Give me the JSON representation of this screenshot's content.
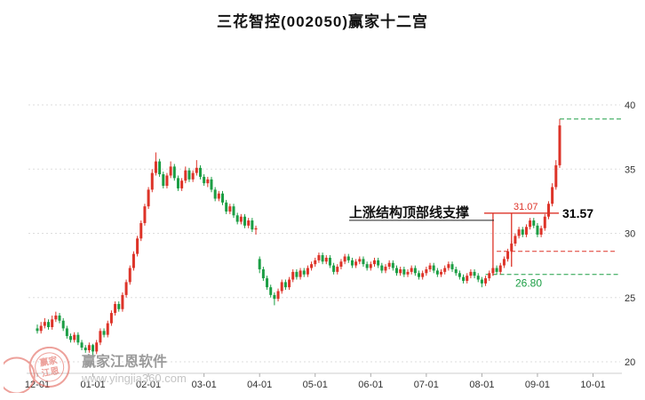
{
  "title": "三花智控(002050)赢家十二宫",
  "watermark": {
    "brand": "赢家江恩软件",
    "url": "www.yingjia360.com",
    "stamp_line1": "赢家",
    "stamp_line2": "江恩"
  },
  "chart_data": {
    "type": "candlestick",
    "title": "三花智控(002050)赢家十二宫",
    "x_labels": [
      "12-01",
      "01-01",
      "02-01",
      "03-01",
      "04-01",
      "05-01",
      "06-01",
      "07-01",
      "08-01",
      "09-01",
      "10-01"
    ],
    "y_ticks": [
      20,
      25,
      30,
      35,
      40
    ],
    "ylim": [
      20,
      40
    ],
    "grid": "dotted-horizontal",
    "legend": "none",
    "candles_per_month": 15,
    "colors": {
      "up": "#dd3328",
      "down": "#1b9e44",
      "grid": "#dddddd",
      "axis_text": "#333333"
    },
    "candles": [
      [
        22.6,
        22.9,
        22.2,
        22.4
      ],
      [
        22.4,
        23.1,
        22.2,
        22.8
      ],
      [
        22.8,
        23.4,
        22.6,
        23.1
      ],
      [
        23.1,
        23.3,
        22.5,
        22.7
      ],
      [
        22.7,
        23.6,
        22.5,
        23.3
      ],
      [
        23.3,
        23.9,
        23.1,
        23.6
      ],
      [
        23.6,
        23.8,
        23.0,
        23.2
      ],
      [
        23.2,
        23.4,
        22.4,
        22.6
      ],
      [
        22.6,
        22.8,
        21.8,
        22.0
      ],
      [
        22.0,
        22.2,
        21.5,
        21.7
      ],
      [
        21.7,
        22.3,
        21.5,
        22.1
      ],
      [
        22.1,
        22.3,
        21.3,
        21.5
      ],
      [
        21.5,
        21.7,
        20.9,
        21.1
      ],
      [
        21.1,
        21.3,
        20.7,
        20.9
      ],
      [
        20.9,
        21.5,
        20.7,
        21.3
      ],
      [
        21.3,
        21.4,
        20.4,
        20.8
      ],
      [
        20.8,
        21.7,
        20.6,
        21.5
      ],
      [
        21.5,
        22.6,
        21.3,
        22.4
      ],
      [
        22.4,
        22.6,
        21.9,
        22.1
      ],
      [
        22.1,
        23.2,
        21.9,
        23.0
      ],
      [
        23.0,
        24.0,
        22.8,
        23.8
      ],
      [
        23.8,
        24.7,
        23.6,
        24.5
      ],
      [
        24.5,
        24.7,
        23.9,
        24.1
      ],
      [
        24.1,
        25.4,
        23.9,
        25.2
      ],
      [
        25.2,
        26.4,
        25.0,
        26.2
      ],
      [
        26.2,
        27.5,
        26.0,
        27.3
      ],
      [
        27.3,
        28.6,
        27.1,
        28.4
      ],
      [
        28.4,
        29.8,
        28.2,
        29.6
      ],
      [
        29.6,
        31.0,
        29.4,
        30.8
      ],
      [
        30.8,
        32.3,
        30.6,
        32.1
      ],
      [
        32.1,
        33.6,
        31.9,
        33.4
      ],
      [
        33.4,
        35.0,
        33.2,
        34.7
      ],
      [
        34.7,
        36.3,
        34.5,
        35.6
      ],
      [
        35.6,
        35.8,
        34.4,
        34.6
      ],
      [
        34.6,
        34.8,
        33.5,
        33.7
      ],
      [
        33.7,
        34.7,
        33.5,
        34.5
      ],
      [
        34.5,
        35.6,
        34.3,
        35.2
      ],
      [
        35.2,
        35.4,
        34.1,
        34.3
      ],
      [
        34.3,
        34.5,
        33.3,
        33.5
      ],
      [
        33.5,
        34.3,
        33.3,
        34.1
      ],
      [
        34.1,
        35.2,
        33.9,
        34.9
      ],
      [
        34.9,
        35.1,
        34.0,
        34.2
      ],
      [
        34.2,
        34.9,
        34.0,
        34.7
      ],
      [
        34.7,
        35.7,
        34.5,
        35.1
      ],
      [
        35.1,
        35.3,
        34.2,
        34.4
      ],
      [
        34.4,
        34.6,
        33.7,
        33.9
      ],
      [
        33.9,
        34.4,
        33.6,
        34.2
      ],
      [
        34.2,
        34.4,
        33.2,
        33.4
      ],
      [
        33.4,
        33.6,
        32.5,
        32.7
      ],
      [
        32.7,
        33.3,
        32.5,
        33.1
      ],
      [
        33.1,
        33.3,
        32.2,
        32.4
      ],
      [
        32.4,
        32.6,
        31.5,
        31.7
      ],
      [
        31.7,
        32.3,
        31.5,
        32.1
      ],
      [
        32.1,
        32.3,
        31.2,
        31.4
      ],
      [
        31.4,
        31.6,
        30.7,
        30.9
      ],
      [
        30.9,
        31.5,
        30.7,
        31.3
      ],
      [
        31.3,
        31.5,
        30.4,
        30.6
      ],
      [
        30.6,
        31.2,
        30.4,
        31.0
      ],
      [
        31.0,
        31.2,
        30.1,
        30.3
      ],
      [
        30.3,
        30.6,
        29.9,
        30.4
      ],
      [
        28.0,
        28.2,
        26.9,
        27.2
      ],
      [
        27.2,
        27.4,
        26.3,
        26.5
      ],
      [
        26.5,
        26.7,
        25.6,
        25.8
      ],
      [
        25.8,
        26.0,
        25.0,
        25.2
      ],
      [
        25.2,
        25.4,
        24.4,
        24.9
      ],
      [
        24.9,
        25.7,
        24.7,
        25.5
      ],
      [
        25.5,
        26.4,
        25.3,
        26.2
      ],
      [
        26.2,
        26.4,
        25.6,
        25.8
      ],
      [
        25.8,
        26.6,
        25.6,
        26.4
      ],
      [
        26.4,
        27.2,
        26.2,
        27.0
      ],
      [
        27.0,
        27.2,
        26.4,
        26.6
      ],
      [
        26.6,
        27.3,
        26.4,
        27.1
      ],
      [
        27.1,
        27.3,
        26.6,
        26.8
      ],
      [
        26.8,
        27.5,
        26.6,
        27.3
      ],
      [
        27.3,
        27.8,
        27.1,
        27.6
      ],
      [
        27.6,
        28.1,
        27.4,
        27.9
      ],
      [
        27.9,
        28.5,
        27.7,
        28.3
      ],
      [
        28.3,
        28.5,
        27.6,
        27.8
      ],
      [
        27.8,
        28.3,
        27.6,
        28.1
      ],
      [
        28.1,
        28.3,
        27.3,
        27.5
      ],
      [
        27.5,
        27.7,
        26.8,
        27.0
      ],
      [
        27.0,
        27.6,
        26.8,
        27.4
      ],
      [
        27.4,
        28.0,
        27.2,
        27.8
      ],
      [
        27.8,
        28.4,
        27.6,
        28.2
      ],
      [
        28.2,
        28.4,
        27.7,
        27.9
      ],
      [
        27.9,
        28.1,
        27.3,
        27.5
      ],
      [
        27.5,
        28.0,
        27.3,
        27.8
      ],
      [
        27.8,
        28.2,
        27.6,
        28.0
      ],
      [
        28.0,
        28.2,
        27.4,
        27.6
      ],
      [
        27.6,
        27.8,
        27.1,
        27.3
      ],
      [
        27.3,
        27.8,
        27.1,
        27.6
      ],
      [
        27.6,
        28.1,
        27.4,
        27.9
      ],
      [
        27.9,
        28.1,
        27.3,
        27.5
      ],
      [
        27.5,
        27.7,
        26.9,
        27.1
      ],
      [
        27.1,
        27.6,
        26.9,
        27.4
      ],
      [
        27.4,
        27.9,
        27.2,
        27.7
      ],
      [
        27.7,
        27.9,
        27.1,
        27.3
      ],
      [
        27.3,
        27.5,
        26.7,
        26.9
      ],
      [
        26.9,
        27.4,
        26.7,
        27.2
      ],
      [
        27.2,
        27.4,
        26.6,
        26.8
      ],
      [
        26.8,
        27.2,
        26.6,
        27.0
      ],
      [
        27.0,
        27.5,
        26.8,
        27.3
      ],
      [
        27.3,
        27.5,
        26.7,
        26.9
      ],
      [
        26.9,
        27.1,
        26.4,
        26.6
      ],
      [
        26.6,
        27.1,
        26.4,
        26.9
      ],
      [
        26.9,
        27.4,
        26.7,
        27.2
      ],
      [
        27.2,
        27.7,
        27.0,
        27.5
      ],
      [
        27.5,
        27.7,
        26.9,
        27.1
      ],
      [
        27.1,
        27.3,
        26.6,
        26.8
      ],
      [
        26.8,
        27.2,
        26.6,
        27.0
      ],
      [
        27.0,
        27.5,
        26.8,
        27.3
      ],
      [
        27.3,
        27.8,
        27.1,
        27.6
      ],
      [
        27.6,
        27.8,
        27.0,
        27.2
      ],
      [
        27.2,
        27.4,
        26.7,
        26.9
      ],
      [
        26.9,
        27.1,
        26.4,
        26.6
      ],
      [
        26.6,
        26.8,
        26.1,
        26.3
      ],
      [
        26.3,
        26.9,
        26.1,
        26.7
      ],
      [
        26.7,
        27.2,
        26.5,
        27.0
      ],
      [
        27.0,
        27.2,
        26.5,
        26.7
      ],
      [
        26.7,
        26.9,
        26.2,
        26.4
      ],
      [
        26.4,
        26.6,
        25.8,
        26.1
      ],
      [
        26.1,
        26.7,
        25.9,
        26.5
      ],
      [
        26.5,
        27.1,
        26.3,
        26.9
      ],
      [
        26.9,
        27.5,
        26.7,
        27.3
      ],
      [
        27.3,
        27.5,
        26.8,
        27.0
      ],
      [
        27.0,
        27.7,
        26.8,
        27.5
      ],
      [
        27.5,
        28.2,
        27.3,
        28.0
      ],
      [
        28.0,
        28.8,
        27.8,
        28.6
      ],
      [
        28.6,
        29.4,
        28.4,
        29.2
      ],
      [
        29.2,
        30.0,
        29.0,
        29.8
      ],
      [
        29.8,
        30.5,
        29.6,
        30.3
      ],
      [
        30.3,
        30.5,
        29.7,
        29.9
      ],
      [
        29.9,
        30.7,
        29.7,
        30.5
      ],
      [
        30.5,
        31.2,
        30.3,
        31.0
      ],
      [
        31.0,
        31.2,
        30.4,
        30.6
      ],
      [
        30.6,
        30.8,
        29.7,
        29.9
      ],
      [
        29.9,
        30.6,
        29.7,
        30.4
      ],
      [
        30.4,
        31.5,
        30.2,
        31.3
      ],
      [
        31.3,
        32.5,
        31.1,
        32.3
      ],
      [
        32.3,
        33.9,
        32.1,
        33.6
      ],
      [
        33.6,
        35.7,
        33.4,
        35.3
      ],
      [
        35.3,
        38.9,
        35.1,
        38.4
      ]
    ],
    "annotations": {
      "support_text": "上涨结构顶部线支撑",
      "support_price": 31.57,
      "support_price_label": "31.57",
      "secondary_price_label": "31.07",
      "zone_low_label": "26.80",
      "top_line_price": 38.9,
      "mid_dashed_price": 28.6,
      "low_dashed_price": 26.8,
      "zone_verticals": [
        {
          "index": 123,
          "low": 26.7
        },
        {
          "index": 128,
          "low": 27.4
        }
      ]
    }
  }
}
